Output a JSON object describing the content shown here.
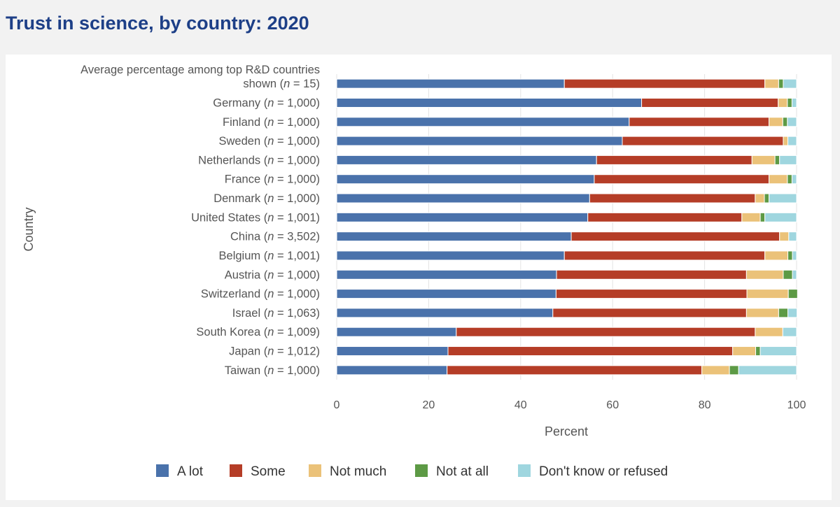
{
  "page": {
    "title": "Trust in science, by country: 2020"
  },
  "colors": {
    "A lot": "#4a72ab",
    "Some": "#b53d27",
    "Not much": "#ebc279",
    "Not at all": "#5d9a45",
    "Don't know or refused": "#9fd6df"
  },
  "chart_data": {
    "type": "bar",
    "orientation": "horizontal",
    "stacked": true,
    "title": "",
    "xlabel": "Percent",
    "ylabel": "Country",
    "xlim": [
      0,
      100
    ],
    "xticks": [
      0,
      20,
      40,
      60,
      80,
      100
    ],
    "grid": true,
    "legend_position": "bottom",
    "categories": [
      [
        {
          "t": "Average percentage among top R&D countries"
        },
        {
          "t": "shown ("
        },
        {
          "t": "n",
          "i": true
        },
        {
          "t": " = 15)"
        }
      ],
      [
        {
          "t": "Germany ("
        },
        {
          "t": "n",
          "i": true
        },
        {
          "t": " = 1,000)"
        }
      ],
      [
        {
          "t": "Finland ("
        },
        {
          "t": "n",
          "i": true
        },
        {
          "t": " = 1,000)"
        }
      ],
      [
        {
          "t": "Sweden ("
        },
        {
          "t": "n",
          "i": true
        },
        {
          "t": " = 1,000)"
        }
      ],
      [
        {
          "t": "Netherlands ("
        },
        {
          "t": "n",
          "i": true
        },
        {
          "t": " = 1,000)"
        }
      ],
      [
        {
          "t": "France ("
        },
        {
          "t": "n",
          "i": true
        },
        {
          "t": " = 1,000)"
        }
      ],
      [
        {
          "t": "Denmark ("
        },
        {
          "t": "n",
          "i": true
        },
        {
          "t": " = 1,000)"
        }
      ],
      [
        {
          "t": "United States ("
        },
        {
          "t": "n",
          "i": true
        },
        {
          "t": " = 1,001)"
        }
      ],
      [
        {
          "t": "China ("
        },
        {
          "t": "n",
          "i": true
        },
        {
          "t": " = 3,502)"
        }
      ],
      [
        {
          "t": "Belgium ("
        },
        {
          "t": "n",
          "i": true
        },
        {
          "t": " = 1,001)"
        }
      ],
      [
        {
          "t": "Austria ("
        },
        {
          "t": "n",
          "i": true
        },
        {
          "t": " = 1,000)"
        }
      ],
      [
        {
          "t": "Switzerland ("
        },
        {
          "t": "n",
          "i": true
        },
        {
          "t": " = 1,000)"
        }
      ],
      [
        {
          "t": "Israel ("
        },
        {
          "t": "n",
          "i": true
        },
        {
          "t": " = 1,063)"
        }
      ],
      [
        {
          "t": "South Korea ("
        },
        {
          "t": "n",
          "i": true
        },
        {
          "t": " = 1,009)"
        }
      ],
      [
        {
          "t": "Japan ("
        },
        {
          "t": "n",
          "i": true
        },
        {
          "t": " = 1,012)"
        }
      ],
      [
        {
          "t": "Taiwan ("
        },
        {
          "t": "n",
          "i": true
        },
        {
          "t": " = 1,000)"
        }
      ]
    ],
    "series": [
      {
        "name": "A lot",
        "values": [
          49.5,
          66.3,
          63.6,
          62.1,
          56.5,
          56.0,
          55.0,
          54.6,
          51.0,
          49.5,
          47.8,
          47.7,
          47.0,
          26.0,
          24.2,
          24.0
        ]
      },
      {
        "name": "Some",
        "values": [
          43.6,
          29.7,
          30.4,
          35.0,
          33.8,
          38.0,
          36.0,
          33.5,
          45.3,
          43.6,
          41.3,
          41.5,
          42.1,
          65.0,
          61.9,
          55.4
        ]
      },
      {
        "name": "Not much",
        "values": [
          3.0,
          2.0,
          3.0,
          1.0,
          5.0,
          4.0,
          2.0,
          4.0,
          2.0,
          5.0,
          8.0,
          9.0,
          7.0,
          6.0,
          5.0,
          6.0
        ]
      },
      {
        "name": "Not at all",
        "values": [
          1.0,
          1.0,
          1.0,
          0.0,
          1.0,
          1.0,
          1.0,
          1.0,
          0.0,
          1.0,
          2.0,
          2.0,
          2.0,
          0.0,
          1.0,
          2.0
        ]
      },
      {
        "name": "Don't know or refused",
        "values": [
          2.9,
          1.0,
          2.0,
          1.9,
          3.7,
          1.0,
          6.0,
          6.9,
          1.7,
          0.9,
          0.9,
          0.0,
          2.0,
          3.0,
          7.9,
          12.6
        ]
      }
    ]
  }
}
